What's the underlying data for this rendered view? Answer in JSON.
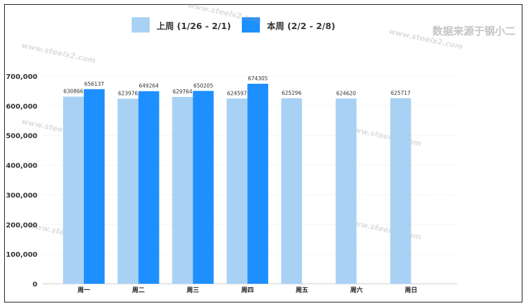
{
  "source_note": "数据来源于钢小二",
  "watermark": "www.steelx2.com",
  "colors": {
    "last_week": "#a9d1f4",
    "this_week": "#1e8fff"
  },
  "chart_data": {
    "type": "bar",
    "categories": [
      "周一",
      "周二",
      "周三",
      "周四",
      "周五",
      "周六",
      "周日"
    ],
    "series": [
      {
        "name": "上周 (1/26 - 2/1)",
        "values": [
          630866,
          623976,
          629764,
          624597,
          625296,
          624620,
          625717
        ]
      },
      {
        "name": "本周 (2/2 - 2/8)",
        "values": [
          656137,
          649264,
          650205,
          674305,
          null,
          null,
          null
        ]
      }
    ],
    "yticks": [
      "0",
      "100,000",
      "200,000",
      "300,000",
      "400,000",
      "500,000",
      "600,000",
      "700,000"
    ],
    "ylim": [
      0,
      700000
    ],
    "legend": "top",
    "grid": true
  }
}
